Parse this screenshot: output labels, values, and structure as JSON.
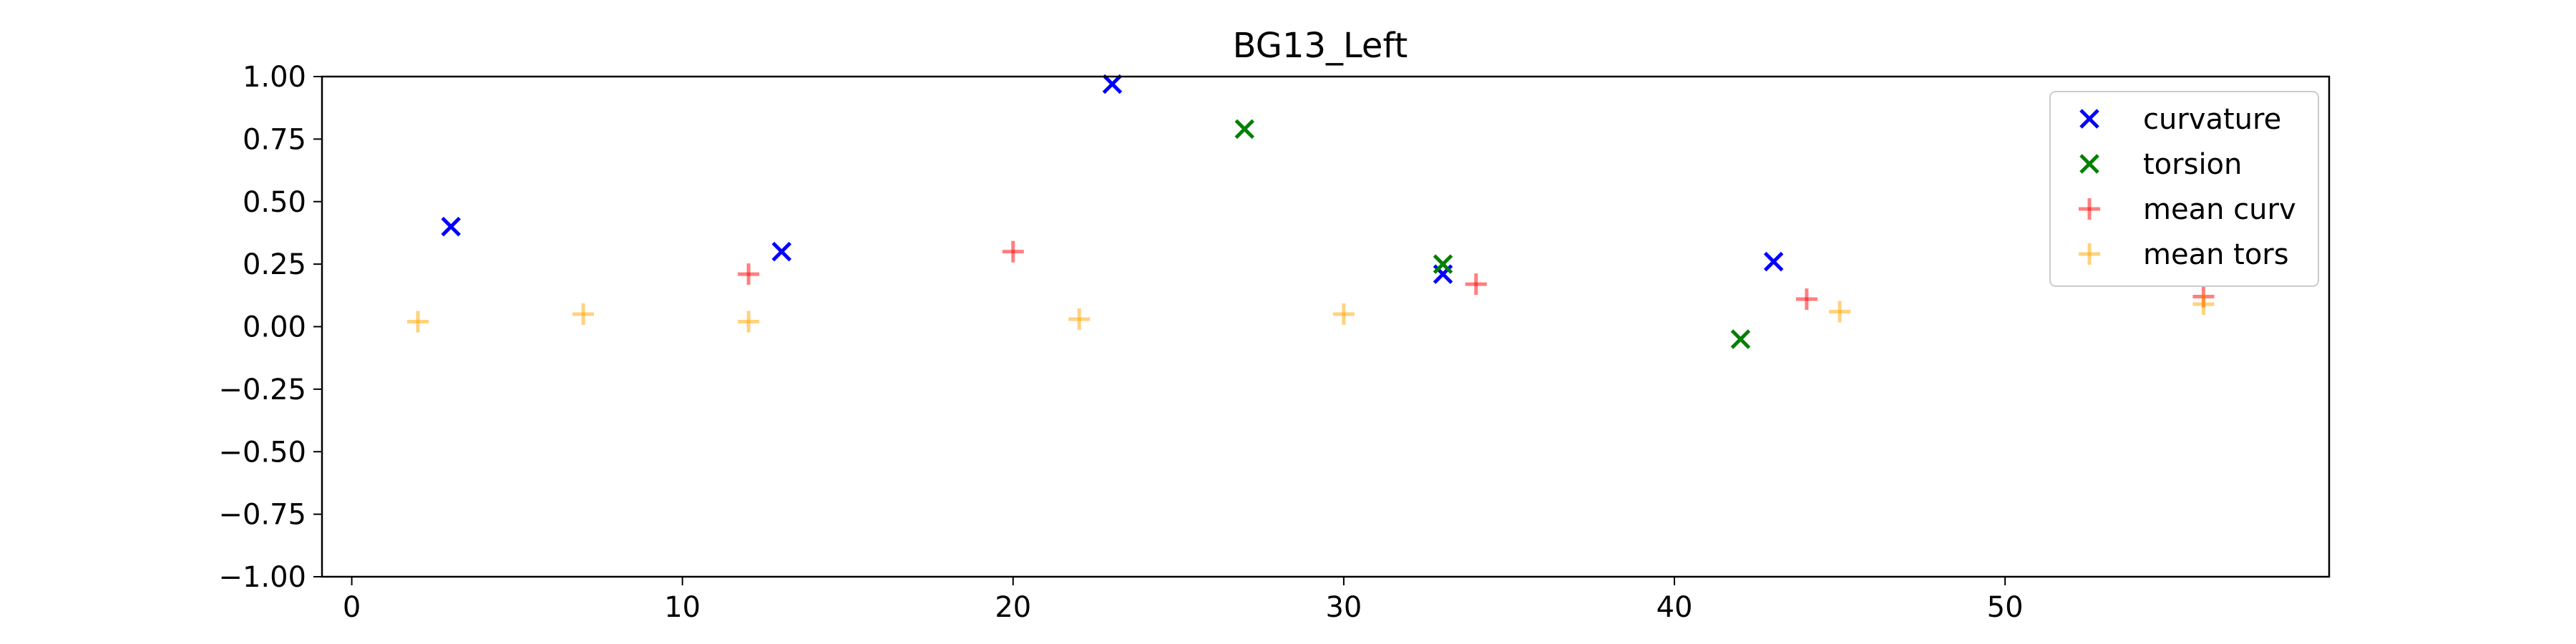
{
  "chart_data": {
    "type": "scatter",
    "title": "BG13_Left",
    "xlabel": "",
    "ylabel": "",
    "xlim": [
      -0.9,
      59.8
    ],
    "ylim": [
      -1.0,
      1.0
    ],
    "xticks": [
      0,
      10,
      20,
      30,
      40,
      50
    ],
    "yticks": [
      -1.0,
      -0.75,
      -0.5,
      -0.25,
      0.0,
      0.25,
      0.5,
      0.75,
      1.0
    ],
    "ytick_labels": [
      "−1.00",
      "−0.75",
      "−0.50",
      "−0.25",
      "0.00",
      "0.25",
      "0.50",
      "0.75",
      "1.00"
    ],
    "grid": false,
    "legend_position": "top-right",
    "series": [
      {
        "name": "curvature",
        "marker": "x",
        "color": "#0000ff",
        "opacity": 1,
        "points": [
          [
            3,
            0.4
          ],
          [
            13,
            0.3
          ],
          [
            23,
            0.97
          ],
          [
            33,
            0.21
          ],
          [
            43,
            0.26
          ]
        ]
      },
      {
        "name": "torsion",
        "marker": "x",
        "color": "#008000",
        "opacity": 1,
        "points": [
          [
            27,
            0.79
          ],
          [
            33,
            0.25
          ],
          [
            42,
            -0.05
          ]
        ]
      },
      {
        "name": "mean curv",
        "marker": "+",
        "color": "#ff0000",
        "opacity": 0.5,
        "points": [
          [
            12,
            0.21
          ],
          [
            20,
            0.3
          ],
          [
            34,
            0.17
          ],
          [
            44,
            0.11
          ],
          [
            56,
            0.12
          ]
        ]
      },
      {
        "name": "mean tors",
        "marker": "+",
        "color": "#ffa500",
        "opacity": 0.5,
        "points": [
          [
            2,
            0.02
          ],
          [
            7,
            0.05
          ],
          [
            12,
            0.02
          ],
          [
            22,
            0.03
          ],
          [
            30,
            0.05
          ],
          [
            45,
            0.06
          ],
          [
            56,
            0.09
          ]
        ]
      }
    ]
  }
}
